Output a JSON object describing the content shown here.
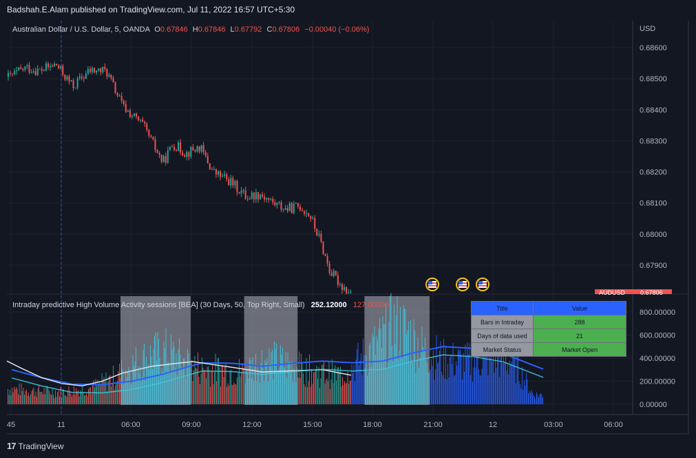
{
  "publish_text": "Badshah.E.Alam published on TradingView.com, Jul 11, 2022 16:57 UTC+5:30",
  "footer_brand": "TradingView",
  "colors": {
    "background": "#131722",
    "up": "#26a69a",
    "down": "#ef5350",
    "ma_blue": "#2962ff",
    "ma_white": "#e0e3eb",
    "volume_cyan": "#40c4e0",
    "session_box": "#b2b5be"
  },
  "price_pane": {
    "instrument": "Australian Dollar / U.S. Dollar, 5, OANDA",
    "ohlc": [
      {
        "label": "O",
        "value": "0.67846"
      },
      {
        "label": "H",
        "value": "0.67846"
      },
      {
        "label": "L",
        "value": "0.67792"
      },
      {
        "label": "C",
        "value": "0.67806"
      }
    ],
    "change": "−0.00040 (−0.06%)",
    "currency": "USD",
    "y_ticks": [
      "0.68600",
      "0.68500",
      "0.68400",
      "0.68300",
      "0.68200",
      "0.68100",
      "0.68000",
      "0.67900"
    ],
    "last_price_label": "AUDUSD",
    "last_price_value": "0.67806",
    "event_icons": [
      "us-flag-icon",
      "us-flag-icon",
      "us-flag-icon"
    ]
  },
  "indicator_pane": {
    "title": "Intraday predictive High Volume Activity sessions [BEA] (30 Days, 50, Top Right, Small)",
    "value1": "252.12000",
    "value2": "127.00000",
    "y_ticks": [
      "800.00000",
      "600.00000",
      "400.00000",
      "200.00000",
      "0.00000"
    ],
    "table": {
      "headers": [
        "Title",
        "Value"
      ],
      "rows": [
        {
          "title": "Bars in Intraday",
          "value": "288"
        },
        {
          "title": "Days of data used",
          "value": "21"
        },
        {
          "title": "Market Status",
          "value": "Market Open"
        }
      ]
    }
  },
  "x_axis": {
    "ticks": [
      "45",
      "11",
      "06:00",
      "09:00",
      "12:00",
      "15:00",
      "18:00",
      "21:00",
      "12",
      "03:00",
      "06:00"
    ]
  },
  "chart_data": [
    {
      "type": "candlestick",
      "title": "Australian Dollar / U.S. Dollar, 5, OANDA",
      "ylabel": "USD",
      "ylim": [
        0.6782,
        0.6869
      ],
      "x_range": [
        "10 Jul 23:45",
        "12 Jul 06:00"
      ],
      "close_path": [
        {
          "time": "Jul 10 23:50",
          "price": 0.68505
        },
        {
          "time": "Jul 11 00:40",
          "price": 0.68535
        },
        {
          "time": "Jul 11 01:20",
          "price": 0.68525
        },
        {
          "time": "Jul 11 02:10",
          "price": 0.68545
        },
        {
          "time": "Jul 11 03:00",
          "price": 0.68475
        },
        {
          "time": "Jul 11 03:50",
          "price": 0.68525
        },
        {
          "time": "Jul 11 04:40",
          "price": 0.68525
        },
        {
          "time": "Jul 11 05:30",
          "price": 0.6841
        },
        {
          "time": "Jul 11 06:30",
          "price": 0.6835
        },
        {
          "time": "Jul 11 07:30",
          "price": 0.6823
        },
        {
          "time": "Jul 11 08:00",
          "price": 0.6829
        },
        {
          "time": "Jul 11 08:40",
          "price": 0.6826
        },
        {
          "time": "Jul 11 09:20",
          "price": 0.6828
        },
        {
          "time": "Jul 11 10:00",
          "price": 0.682
        },
        {
          "time": "Jul 11 10:50",
          "price": 0.6817
        },
        {
          "time": "Jul 11 11:40",
          "price": 0.6812
        },
        {
          "time": "Jul 11 12:20",
          "price": 0.6813
        },
        {
          "time": "Jul 11 13:00",
          "price": 0.681
        },
        {
          "time": "Jul 11 13:40",
          "price": 0.6808
        },
        {
          "time": "Jul 11 14:20",
          "price": 0.6809
        },
        {
          "time": "Jul 11 14:50",
          "price": 0.6806
        },
        {
          "time": "Jul 11 15:20",
          "price": 0.6798
        },
        {
          "time": "Jul 11 15:50",
          "price": 0.6788
        },
        {
          "time": "Jul 11 16:20",
          "price": 0.6784
        },
        {
          "time": "Jul 11 16:55",
          "price": 0.67806
        }
      ]
    },
    {
      "type": "bar",
      "title": "Intraday predictive High Volume Activity sessions [BEA]",
      "ylim": [
        0,
        900
      ],
      "y_ticks": [
        800,
        600,
        400,
        200,
        0
      ],
      "volume_profile": [
        {
          "time": "Jul 10 23:45",
          "volume": 150
        },
        {
          "time": "Jul 11 01:00",
          "volume": 130
        },
        {
          "time": "Jul 11 02:30",
          "volume": 120
        },
        {
          "time": "Jul 11 04:00",
          "volume": 160
        },
        {
          "time": "Jul 11 05:00",
          "volume": 250
        },
        {
          "time": "Jul 11 06:00",
          "volume": 380
        },
        {
          "time": "Jul 11 07:00",
          "volume": 470
        },
        {
          "time": "Jul 11 07:40",
          "volume": 500
        },
        {
          "time": "Jul 11 08:30",
          "volume": 420
        },
        {
          "time": "Jul 11 09:30",
          "volume": 340
        },
        {
          "time": "Jul 11 10:30",
          "volume": 330
        },
        {
          "time": "Jul 11 11:30",
          "volume": 310
        },
        {
          "time": "Jul 11 12:30",
          "volume": 430
        },
        {
          "time": "Jul 11 13:30",
          "volume": 400
        },
        {
          "time": "Jul 11 14:30",
          "volume": 330
        },
        {
          "time": "Jul 11 15:30",
          "volume": 300
        },
        {
          "time": "Jul 11 16:30",
          "volume": 280
        },
        {
          "time": "Jul 11 17:30",
          "volume": 450
        },
        {
          "time": "Jul 11 18:30",
          "volume": 620
        },
        {
          "time": "Jul 11 19:00",
          "volume": 750
        },
        {
          "time": "Jul 11 19:40",
          "volume": 700
        },
        {
          "time": "Jul 11 20:30",
          "volume": 520
        },
        {
          "time": "Jul 11 21:30",
          "volume": 430
        },
        {
          "time": "Jul 11 22:30",
          "volume": 400
        },
        {
          "time": "Jul 12 00:00",
          "volume": 450
        },
        {
          "time": "Jul 12 01:00",
          "volume": 420
        },
        {
          "time": "Jul 12 02:00",
          "volume": 90
        }
      ],
      "high_volume_sessions": [
        {
          "start": "Jul 11 05:25",
          "end": "Jul 11 08:55"
        },
        {
          "start": "Jul 11 11:35",
          "end": "Jul 11 14:15"
        },
        {
          "start": "Jul 11 17:35",
          "end": "Jul 11 20:50"
        }
      ],
      "series": [
        {
          "name": "",
          "color": "#2962ff",
          "points": [
            {
              "time": "Jul 11 00:00",
              "value": 300
            },
            {
              "time": "Jul 11 01:30",
              "value": 230
            },
            {
              "time": "Jul 11 03:00",
              "value": 175
            },
            {
              "time": "Jul 11 04:30",
              "value": 170
            },
            {
              "time": "Jul 11 06:00",
              "value": 200
            },
            {
              "time": "Jul 11 07:30",
              "value": 260
            },
            {
              "time": "Jul 11 09:30",
              "value": 360
            },
            {
              "time": "Jul 11 11:00",
              "value": 355
            },
            {
              "time": "Jul 11 12:30",
              "value": 330
            },
            {
              "time": "Jul 11 14:00",
              "value": 355
            },
            {
              "time": "Jul 11 15:30",
              "value": 375
            },
            {
              "time": "Jul 11 17:00",
              "value": 360
            },
            {
              "time": "Jul 11 18:30",
              "value": 375
            },
            {
              "time": "Jul 11 20:00",
              "value": 445
            },
            {
              "time": "Jul 11 21:30",
              "value": 500
            },
            {
              "time": "Jul 11 23:00",
              "value": 485
            },
            {
              "time": "Jul 12 00:30",
              "value": 440
            },
            {
              "time": "Jul 12 02:30",
              "value": 305
            }
          ]
        },
        {
          "name": "",
          "color": "#e0e3eb",
          "points": [
            {
              "time": "Jul 10 23:45",
              "value": 375
            },
            {
              "time": "Jul 11 00:30",
              "value": 310
            },
            {
              "time": "Jul 11 01:30",
              "value": 230
            },
            {
              "time": "Jul 11 02:30",
              "value": 180
            },
            {
              "time": "Jul 11 03:30",
              "value": 160
            },
            {
              "time": "Jul 11 04:30",
              "value": 200
            },
            {
              "time": "Jul 11 05:30",
              "value": 270
            },
            {
              "time": "Jul 11 07:00",
              "value": 330
            },
            {
              "time": "Jul 11 09:00",
              "value": 370
            },
            {
              "time": "Jul 11 11:00",
              "value": 320
            },
            {
              "time": "Jul 11 12:30",
              "value": 280
            },
            {
              "time": "Jul 11 14:00",
              "value": 290
            },
            {
              "time": "Jul 11 15:30",
              "value": 300
            },
            {
              "time": "Jul 11 16:55",
              "value": 252
            }
          ]
        }
      ]
    }
  ]
}
